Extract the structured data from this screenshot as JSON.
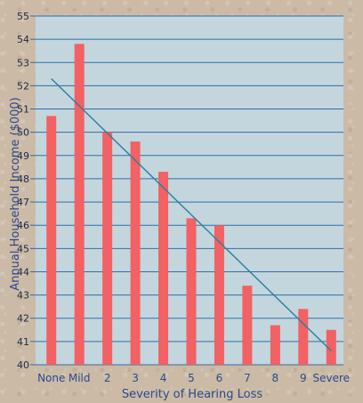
{
  "chart_data": {
    "type": "bar",
    "categories": [
      "None",
      "Mild",
      "2",
      "3",
      "4",
      "5",
      "6",
      "7",
      "8",
      "9",
      "Severe"
    ],
    "values": [
      50.7,
      53.8,
      50.0,
      49.6,
      48.3,
      46.3,
      46.0,
      43.4,
      41.7,
      42.4,
      41.5
    ],
    "ylim": [
      40,
      55
    ],
    "yticks": [
      "40",
      "41",
      "42",
      "43",
      "44",
      "45",
      "46",
      "47",
      "48",
      "49",
      "50",
      "51",
      "52",
      "53",
      "54",
      "55"
    ],
    "trendline": {
      "start": 52.3,
      "end": 40.6
    },
    "xlabel": "Severity of Hearing Loss",
    "ylabel": "Annual Household Income ($000)",
    "grid": true,
    "colors": {
      "plot_bg": "#c3d6dd",
      "grid": "#2f6ea6",
      "bar": "#f26164",
      "trend": "#2a7fa0",
      "tick_text": "#1c2a44",
      "label_text": "#2a4a8c"
    }
  }
}
